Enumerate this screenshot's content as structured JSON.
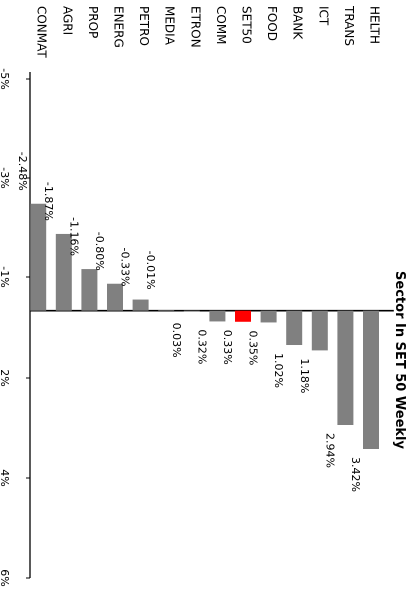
{
  "chart_data": {
    "type": "bar",
    "orientation": "rotated-90-clockwise",
    "title": "Sector In SET 50 Weekly",
    "categories": [
      "HELTH",
      "TRANS",
      "ICT",
      "BANK",
      "FOOD",
      "SET50",
      "COMM",
      "ETRON",
      "MEDIA",
      "PETRO",
      "ENERG",
      "PROP",
      "AGRI",
      "CONMAT"
    ],
    "values": [
      3.42,
      2.94,
      1.18,
      1.02,
      0.35,
      0.33,
      0.32,
      0.03,
      -0.01,
      -0.33,
      -0.8,
      -1.16,
      -1.87,
      -2.48
    ],
    "data_labels": [
      "3.42%",
      "2.94%",
      "1.18%",
      "1.02%",
      "0.35%",
      "0.33%",
      "0.32%",
      "0.03%",
      "-0.01%",
      "-0.33%",
      "-0.80%",
      "-1.16%",
      "-1.87%",
      "-2.48%"
    ],
    "ticks": [
      -5,
      -3,
      -1,
      2,
      4,
      6
    ],
    "tick_labels": [
      "-5%",
      "-3%",
      "-1%",
      "2%",
      "4%",
      "6%"
    ],
    "xlim": [
      -5,
      6
    ],
    "bar_color": "#808080",
    "highlight_category": "SET50",
    "highlight_color": "#ff0000",
    "grid": false,
    "legend": "none"
  }
}
